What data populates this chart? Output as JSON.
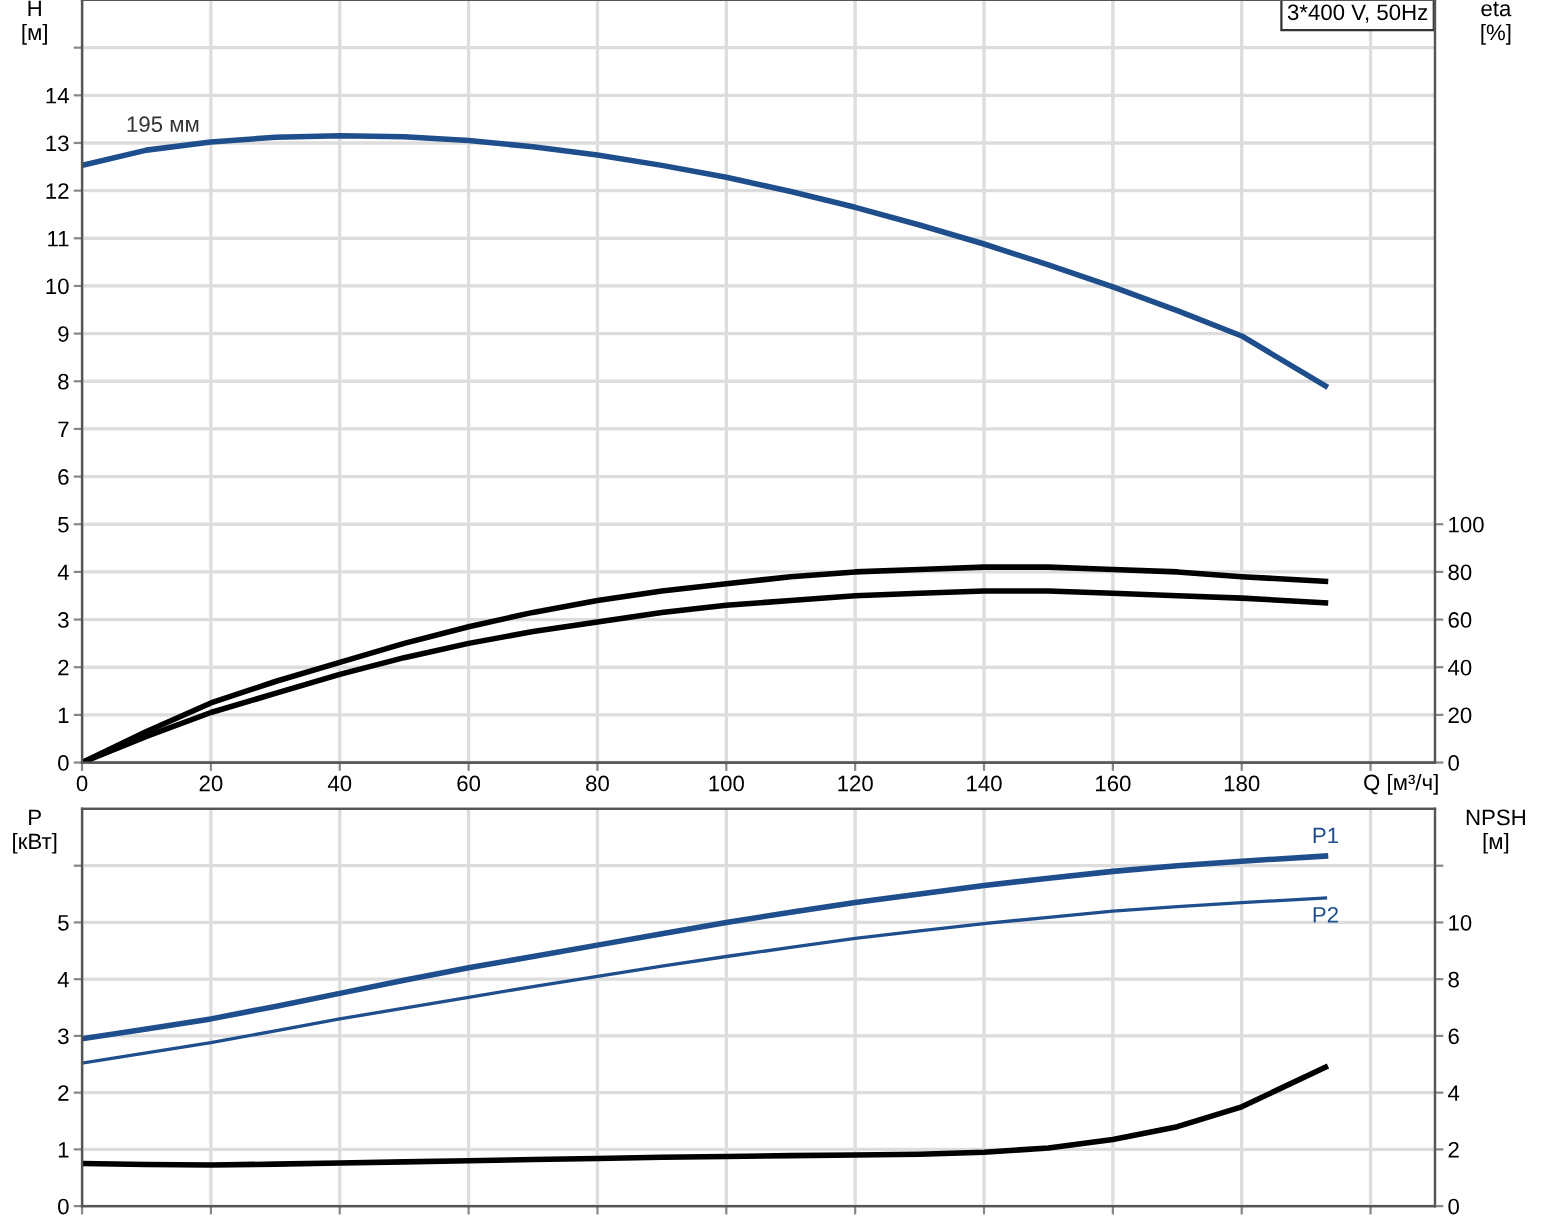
{
  "chart_data": [
    {
      "type": "line",
      "title": "3*400 V, 50Hz",
      "xlabel": "Q [м³/ч]",
      "ylabel": "H\n[м]",
      "y2label": "eta\n[%]",
      "x": [
        0,
        10,
        20,
        30,
        40,
        50,
        60,
        70,
        80,
        90,
        100,
        110,
        120,
        130,
        140,
        150,
        160,
        170,
        180,
        193
      ],
      "series": [
        {
          "name": "195 мм",
          "color": "#1f4e8c",
          "values": [
            12.53,
            12.85,
            13.02,
            13.12,
            13.15,
            13.13,
            13.05,
            12.92,
            12.75,
            12.53,
            12.28,
            11.98,
            11.65,
            11.28,
            10.88,
            10.44,
            9.98,
            9.48,
            8.95,
            7.9
          ]
        },
        {
          "color": "#000000",
          "axis": "y2",
          "values": [
            0,
            13,
            25,
            34,
            42,
            50,
            57,
            63,
            68,
            72,
            75,
            78,
            80,
            81,
            82,
            82,
            81,
            80,
            78,
            76
          ]
        },
        {
          "color": "#000000",
          "axis": "y2",
          "values": [
            0,
            11,
            21,
            29,
            37,
            44,
            50,
            55,
            59,
            63,
            66,
            68,
            70,
            71,
            72,
            72,
            71,
            70,
            69,
            67
          ]
        }
      ],
      "xlim": [
        0,
        210
      ],
      "xticks": [
        0,
        20,
        40,
        60,
        80,
        100,
        120,
        140,
        160,
        180,
        {
          "value": 200,
          "label": null
        }
      ],
      "ylim": [
        0,
        16
      ],
      "yticks": [
        0,
        1,
        2,
        3,
        4,
        5,
        6,
        7,
        8,
        9,
        10,
        11,
        12,
        13,
        14,
        {
          "value": 15,
          "label": null
        }
      ],
      "y2lim": [
        0,
        320
      ],
      "y2ticks": [
        0,
        20,
        40,
        60,
        80,
        100
      ],
      "grid": true,
      "legend": false,
      "marker": "none",
      "line_style": "solid"
    },
    {
      "type": "line",
      "ylabel": "P\n[кВт]",
      "y2label": "NPSH\n[м]",
      "x": [
        0,
        10,
        20,
        30,
        40,
        50,
        60,
        70,
        80,
        90,
        100,
        110,
        120,
        130,
        140,
        150,
        160,
        170,
        180,
        193
      ],
      "series": [
        {
          "name": "P1",
          "color": "#1f4e8c",
          "values": [
            2.95,
            3.12,
            3.3,
            3.52,
            3.75,
            3.98,
            4.2,
            4.4,
            4.6,
            4.8,
            5.0,
            5.18,
            5.35,
            5.5,
            5.65,
            5.78,
            5.9,
            6.0,
            6.08,
            6.17
          ]
        },
        {
          "name": "P2",
          "color": "#1f4e8c",
          "values": [
            2.52,
            2.7,
            2.88,
            3.09,
            3.3,
            3.49,
            3.68,
            3.87,
            4.05,
            4.23,
            4.4,
            4.56,
            4.72,
            4.85,
            4.98,
            5.09,
            5.2,
            5.28,
            5.35,
            5.43
          ]
        },
        {
          "color": "#000000",
          "axis": "y2",
          "values": [
            1.5,
            1.47,
            1.45,
            1.48,
            1.52,
            1.56,
            1.6,
            1.64,
            1.68,
            1.72,
            1.75,
            1.78,
            1.8,
            1.83,
            1.9,
            2.05,
            2.35,
            2.8,
            3.5,
            4.9
          ]
        }
      ],
      "xlim": [
        0,
        210
      ],
      "xticks": [
        0,
        20,
        40,
        60,
        80,
        100,
        120,
        140,
        160,
        180,
        200
      ],
      "ylim": [
        0,
        7
      ],
      "yticks": [
        0,
        1,
        2,
        3,
        4,
        5,
        {
          "value": 6,
          "label": null
        }
      ],
      "y2lim": [
        0,
        14
      ],
      "y2ticks": [
        0,
        2,
        4,
        6,
        8,
        10,
        {
          "value": 12,
          "label": null
        }
      ],
      "tick_labels": "y",
      "grid": true,
      "legend": false,
      "marker": "none",
      "line_style": "solid"
    }
  ]
}
